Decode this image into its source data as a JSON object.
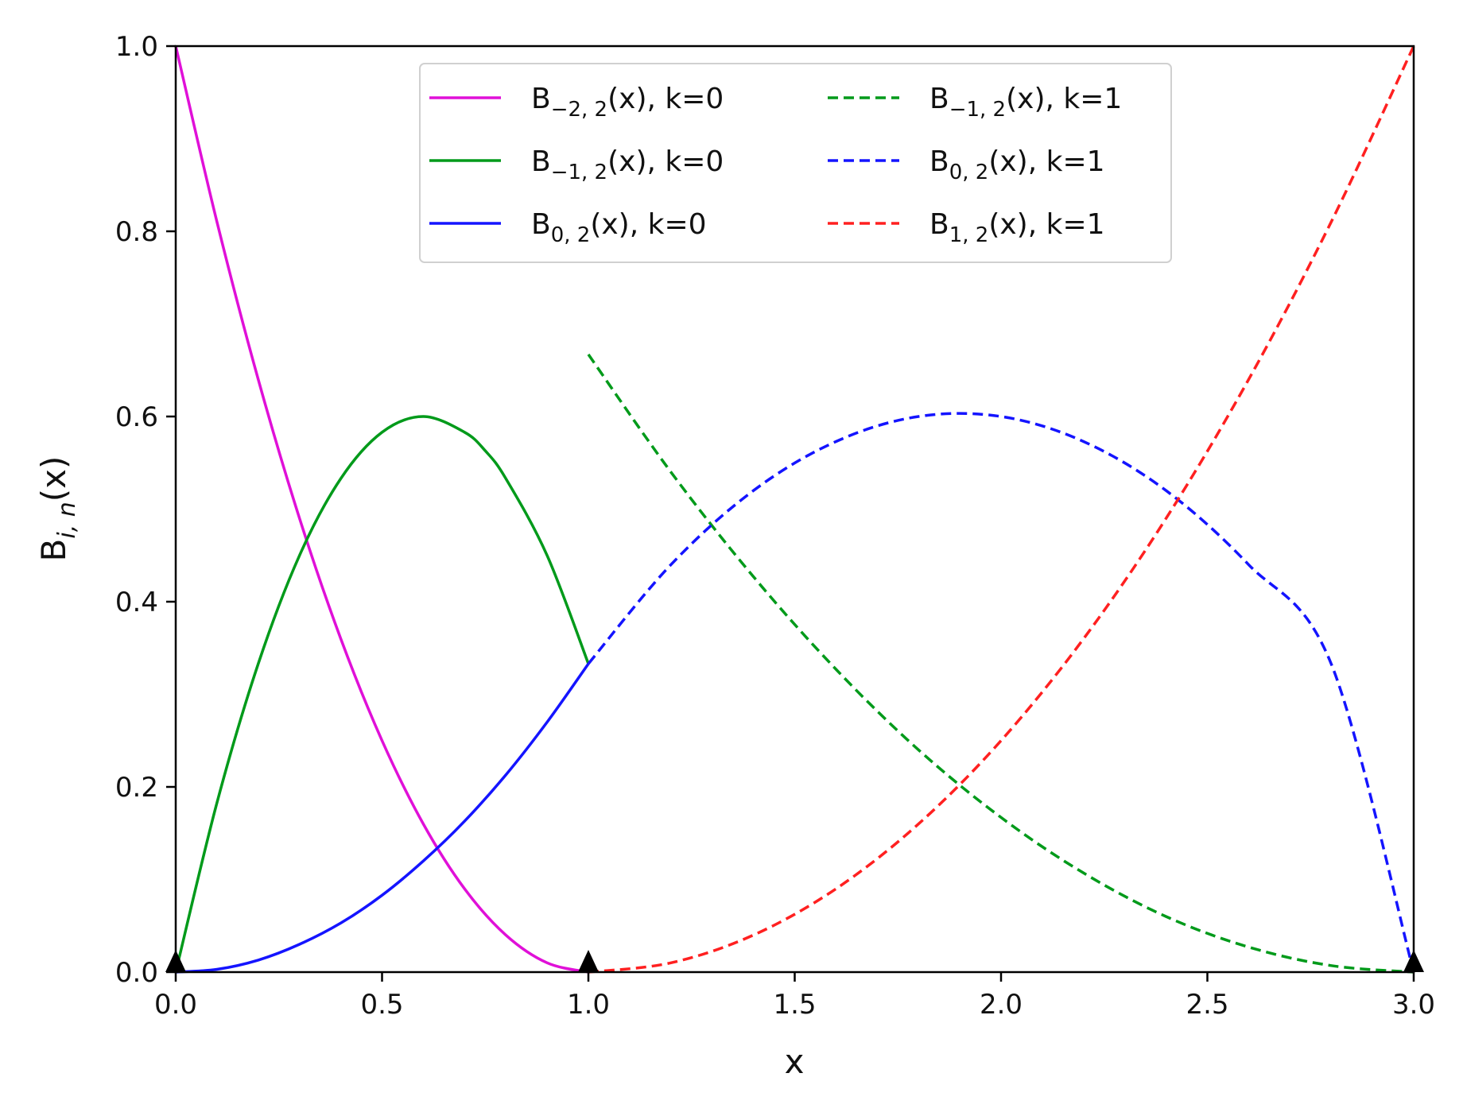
{
  "chart_data": {
    "type": "line",
    "title": "",
    "xlabel": "x",
    "ylabel": {
      "base": "B",
      "sub": "i, n",
      "suffix": "(x)"
    },
    "xlim": [
      0,
      3
    ],
    "ylim": [
      0,
      1
    ],
    "x_ticks": [
      "0.0",
      "0.5",
      "1.0",
      "1.5",
      "2.0",
      "2.5",
      "3.0"
    ],
    "y_ticks": [
      "0.0",
      "0.2",
      "0.4",
      "0.6",
      "0.8",
      "1.0"
    ],
    "grid": false,
    "legend_placement": "top-center",
    "series": [
      {
        "name": "B_{-2,2}(x), k=0",
        "legend": {
          "base": "B",
          "sub": "−2, 2",
          "suffix": "(x), k=0"
        },
        "color": "#e010d8",
        "style": "solid",
        "x": [
          0,
          0.1,
          0.2,
          0.3,
          0.4,
          0.5,
          0.6,
          0.7,
          0.8,
          0.9,
          1.0
        ],
        "y": [
          1.0,
          0.81,
          0.64,
          0.49,
          0.36,
          0.25,
          0.16,
          0.09,
          0.04,
          0.01,
          0.0
        ]
      },
      {
        "name": "B_{-1,2}(x), k=0",
        "legend": {
          "base": "B",
          "sub": "−1, 2",
          "suffix": "(x), k=0"
        },
        "color": "#009a1a",
        "style": "solid",
        "x": [
          0,
          0.1,
          0.2,
          0.3,
          0.4,
          0.5,
          0.6,
          0.7,
          0.75,
          0.8,
          0.9,
          1.0
        ],
        "y": [
          0.0,
          0.183,
          0.333,
          0.45,
          0.533,
          0.583,
          0.6,
          0.583,
          0.563,
          0.533,
          0.45,
          0.333
        ]
      },
      {
        "name": "B_{0,2}(x), k=0",
        "legend": {
          "base": "B",
          "sub": "0, 2",
          "suffix": "(x), k=0"
        },
        "color": "#1414ff",
        "style": "solid",
        "x": [
          0,
          0.1,
          0.2,
          0.3,
          0.4,
          0.5,
          0.6,
          0.7,
          0.8,
          0.9,
          1.0
        ],
        "y": [
          0.0,
          0.003,
          0.013,
          0.03,
          0.053,
          0.083,
          0.12,
          0.163,
          0.213,
          0.27,
          0.333
        ]
      },
      {
        "name": "B_{-1,2}(x), k=1",
        "legend": {
          "base": "B",
          "sub": "−1, 2",
          "suffix": "(x), k=1"
        },
        "color": "#009a1a",
        "style": "dashed",
        "x": [
          1.0,
          1.2,
          1.4,
          1.6,
          1.8,
          2.0,
          2.2,
          2.4,
          2.6,
          2.8,
          3.0
        ],
        "y": [
          0.667,
          0.54,
          0.427,
          0.327,
          0.24,
          0.167,
          0.107,
          0.06,
          0.027,
          0.007,
          0.0
        ]
      },
      {
        "name": "B_{0,2}(x), k=1",
        "legend": {
          "base": "B",
          "sub": "0, 2",
          "suffix": "(x), k=1"
        },
        "color": "#1414ff",
        "style": "dashed",
        "x": [
          1.0,
          1.2,
          1.4,
          1.6,
          1.8,
          2.0,
          2.2,
          2.4,
          2.6,
          2.8,
          3.0
        ],
        "y": [
          0.333,
          0.44,
          0.52,
          0.573,
          0.6,
          0.6,
          0.573,
          0.52,
          0.44,
          0.333,
          0.0
        ]
      },
      {
        "name": "B_{1,2}(x), k=1",
        "legend": {
          "base": "B",
          "sub": "1, 2",
          "suffix": "(x), k=1"
        },
        "color": "#ff2020",
        "style": "dashed",
        "x": [
          1.0,
          1.2,
          1.4,
          1.6,
          1.8,
          2.0,
          2.2,
          2.4,
          2.6,
          2.8,
          3.0
        ],
        "y": [
          0.0,
          0.01,
          0.04,
          0.09,
          0.16,
          0.25,
          0.36,
          0.49,
          0.64,
          0.81,
          1.0
        ]
      }
    ],
    "knot_markers": {
      "x": [
        0,
        1,
        3
      ],
      "y": [
        0,
        0,
        0
      ],
      "color": "#000000",
      "shape": "triangle"
    }
  }
}
